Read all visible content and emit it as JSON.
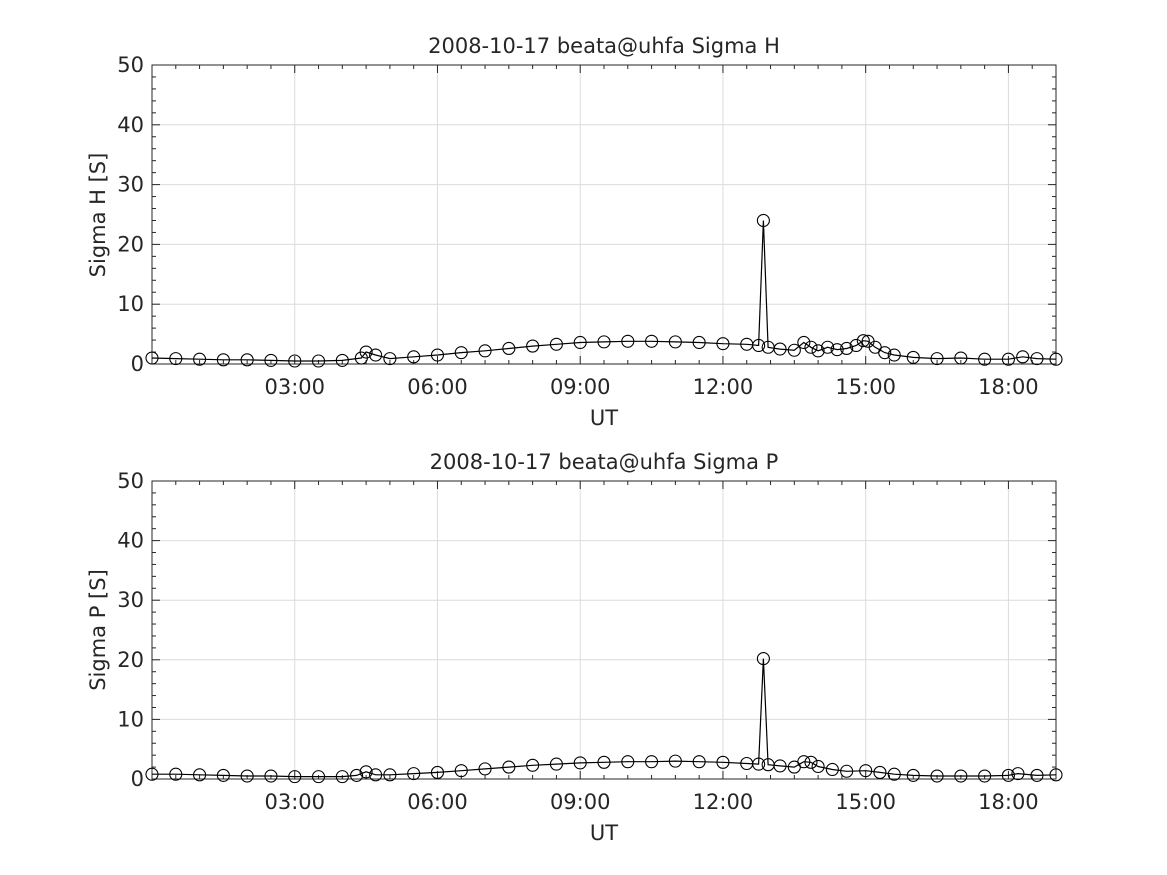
{
  "figure": {
    "background": "#ffffff",
    "axis_color": "#262626",
    "grid_color": "#dcdcdc",
    "marker_color": "#000000"
  },
  "chart_data": [
    {
      "type": "line",
      "title": "2008-10-17  beata@uhfa Sigma H",
      "xlabel": "UT",
      "ylabel": "Sigma H [S]",
      "xlim": [
        0.0,
        19.0
      ],
      "ylim": [
        0,
        50
      ],
      "xticks": [
        "03:00",
        "06:00",
        "09:00",
        "12:00",
        "15:00",
        "18:00"
      ],
      "xtick_values": [
        3,
        6,
        9,
        12,
        15,
        18
      ],
      "yticks": [
        "0",
        "10",
        "20",
        "30",
        "40",
        "50"
      ],
      "ytick_values": [
        0,
        10,
        20,
        30,
        40,
        50
      ],
      "grid": true,
      "marker": "open-circle",
      "series": [
        {
          "x": [
            0.0,
            0.5,
            1.0,
            1.5,
            2.0,
            2.5,
            3.0,
            3.5,
            4.0,
            4.4,
            4.5,
            4.7,
            5.0,
            5.5,
            6.0,
            6.5,
            7.0,
            7.5,
            8.0,
            8.5,
            9.0,
            9.5,
            10.0,
            10.5,
            11.0,
            11.5,
            12.0,
            12.5,
            12.75,
            12.85,
            12.95,
            13.2,
            13.5,
            13.7,
            13.85,
            14.0,
            14.2,
            14.4,
            14.6,
            14.8,
            14.95,
            15.05,
            15.2,
            15.4,
            15.6,
            16.0,
            16.5,
            17.0,
            17.5,
            18.0,
            18.3,
            18.6,
            19.0
          ],
          "y": [
            1.0,
            0.9,
            0.8,
            0.7,
            0.7,
            0.6,
            0.5,
            0.5,
            0.6,
            1.0,
            2.0,
            1.5,
            0.9,
            1.2,
            1.5,
            1.9,
            2.2,
            2.6,
            3.0,
            3.3,
            3.6,
            3.7,
            3.8,
            3.8,
            3.7,
            3.6,
            3.4,
            3.3,
            3.1,
            24.0,
            2.8,
            2.5,
            2.3,
            3.6,
            2.8,
            2.2,
            2.8,
            2.4,
            2.6,
            3.1,
            3.9,
            3.8,
            2.8,
            1.9,
            1.5,
            1.1,
            0.9,
            1.0,
            0.8,
            0.8,
            1.2,
            0.9,
            0.8
          ]
        }
      ]
    },
    {
      "type": "line",
      "title": "2008-10-17  beata@uhfa Sigma P",
      "xlabel": "UT",
      "ylabel": "Sigma P [S]",
      "xlim": [
        0.0,
        19.0
      ],
      "ylim": [
        0,
        50
      ],
      "xticks": [
        "03:00",
        "06:00",
        "09:00",
        "12:00",
        "15:00",
        "18:00"
      ],
      "xtick_values": [
        3,
        6,
        9,
        12,
        15,
        18
      ],
      "yticks": [
        "0",
        "10",
        "20",
        "30",
        "40",
        "50"
      ],
      "ytick_values": [
        0,
        10,
        20,
        30,
        40,
        50
      ],
      "grid": true,
      "marker": "open-circle",
      "series": [
        {
          "x": [
            0.0,
            0.5,
            1.0,
            1.5,
            2.0,
            2.5,
            3.0,
            3.5,
            4.0,
            4.3,
            4.5,
            4.7,
            5.0,
            5.5,
            6.0,
            6.5,
            7.0,
            7.5,
            8.0,
            8.5,
            9.0,
            9.5,
            10.0,
            10.5,
            11.0,
            11.5,
            12.0,
            12.5,
            12.75,
            12.85,
            12.95,
            13.2,
            13.5,
            13.7,
            13.85,
            14.0,
            14.3,
            14.6,
            15.0,
            15.3,
            15.6,
            16.0,
            16.5,
            17.0,
            17.5,
            18.0,
            18.2,
            18.6,
            19.0
          ],
          "y": [
            0.8,
            0.8,
            0.7,
            0.6,
            0.5,
            0.5,
            0.4,
            0.4,
            0.4,
            0.6,
            1.2,
            0.7,
            0.7,
            0.9,
            1.1,
            1.4,
            1.7,
            2.0,
            2.3,
            2.5,
            2.7,
            2.8,
            2.9,
            2.9,
            3.0,
            2.9,
            2.8,
            2.6,
            2.5,
            20.2,
            2.4,
            2.2,
            2.0,
            2.9,
            2.8,
            2.1,
            1.6,
            1.3,
            1.4,
            1.1,
            0.8,
            0.6,
            0.5,
            0.5,
            0.5,
            0.6,
            0.9,
            0.6,
            0.7
          ]
        }
      ]
    }
  ]
}
